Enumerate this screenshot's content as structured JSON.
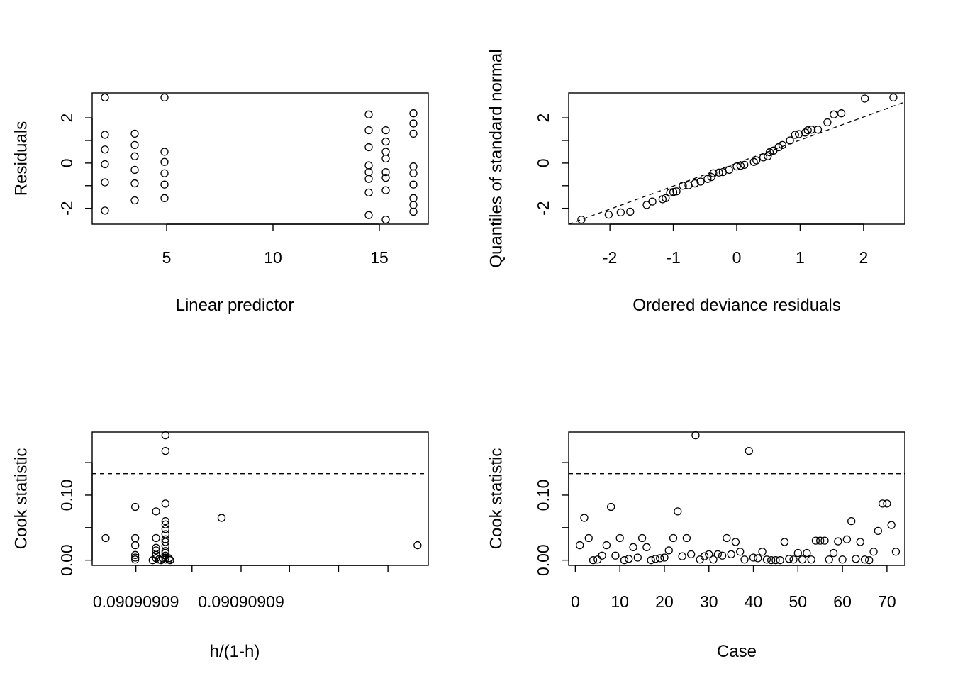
{
  "chart_data": [
    {
      "id": "residuals-vs-linear-predictor",
      "type": "scatter",
      "title": "",
      "xlabel": "Linear predictor",
      "ylabel": "Residuals",
      "xlim": [
        1.5,
        17.3
      ],
      "ylim": [
        -2.7,
        3.1
      ],
      "x_ticks": [
        {
          "v": 5,
          "label": "5"
        },
        {
          "v": 10,
          "label": "10"
        },
        {
          "v": 15,
          "label": "15"
        }
      ],
      "y_ticks": [
        {
          "v": -2,
          "label": "-2"
        },
        {
          "v": -1,
          "label": ""
        },
        {
          "v": 0,
          "label": "0"
        },
        {
          "v": 1,
          "label": ""
        },
        {
          "v": 2,
          "label": "2"
        }
      ],
      "points": [
        [
          2.1,
          2.9
        ],
        [
          2.1,
          1.25
        ],
        [
          2.1,
          0.6
        ],
        [
          2.1,
          -0.05
        ],
        [
          2.1,
          -0.85
        ],
        [
          2.1,
          -2.1
        ],
        [
          3.5,
          1.3
        ],
        [
          3.5,
          0.8
        ],
        [
          3.5,
          0.3
        ],
        [
          3.5,
          -0.3
        ],
        [
          3.5,
          -0.9
        ],
        [
          3.5,
          -1.65
        ],
        [
          4.9,
          2.9
        ],
        [
          4.9,
          0.5
        ],
        [
          4.9,
          0.05
        ],
        [
          4.9,
          -0.45
        ],
        [
          4.9,
          -0.95
        ],
        [
          4.9,
          -1.55
        ],
        [
          14.5,
          2.15
        ],
        [
          14.5,
          1.45
        ],
        [
          14.5,
          0.7
        ],
        [
          14.5,
          -0.1
        ],
        [
          14.5,
          -0.4
        ],
        [
          14.5,
          -0.7
        ],
        [
          14.5,
          -1.3
        ],
        [
          14.5,
          -2.3
        ],
        [
          15.3,
          1.45
        ],
        [
          15.3,
          0.95
        ],
        [
          15.3,
          0.5
        ],
        [
          15.3,
          0.2
        ],
        [
          15.3,
          -0.4
        ],
        [
          15.3,
          -0.65
        ],
        [
          15.3,
          -1.2
        ],
        [
          15.3,
          -2.5
        ],
        [
          16.6,
          2.2
        ],
        [
          16.6,
          1.75
        ],
        [
          16.6,
          1.3
        ],
        [
          16.6,
          -0.15
        ],
        [
          16.6,
          -0.45
        ],
        [
          16.6,
          -0.95
        ],
        [
          16.6,
          -1.55
        ],
        [
          16.6,
          -1.85
        ],
        [
          16.6,
          -2.15
        ]
      ]
    },
    {
      "id": "qq-deviance-residuals",
      "type": "scatter",
      "title": "",
      "xlabel": "Ordered deviance residuals",
      "ylabel": "Quantiles of standard normal",
      "xlim": [
        -2.65,
        2.65
      ],
      "ylim": [
        -2.7,
        3.1
      ],
      "x_ticks": [
        {
          "v": -2,
          "label": "-2"
        },
        {
          "v": -1,
          "label": "-1"
        },
        {
          "v": 0,
          "label": "0"
        },
        {
          "v": 1,
          "label": "1"
        },
        {
          "v": 2,
          "label": "2"
        }
      ],
      "y_ticks": [
        {
          "v": -2,
          "label": "-2"
        },
        {
          "v": -1,
          "label": ""
        },
        {
          "v": 0,
          "label": "0"
        },
        {
          "v": 1,
          "label": ""
        },
        {
          "v": 2,
          "label": "2"
        }
      ],
      "ref_line": [
        [
          -2.65,
          -2.7
        ],
        [
          2.65,
          2.7
        ]
      ],
      "points": [
        [
          -2.45,
          -2.5
        ],
        [
          -2.02,
          -2.28
        ],
        [
          -1.83,
          -2.18
        ],
        [
          -1.68,
          -2.15
        ],
        [
          -1.42,
          -1.85
        ],
        [
          -1.33,
          -1.7
        ],
        [
          -1.17,
          -1.6
        ],
        [
          -1.12,
          -1.55
        ],
        [
          -1.05,
          -1.3
        ],
        [
          -1.0,
          -1.28
        ],
        [
          -0.95,
          -1.25
        ],
        [
          -0.85,
          -1.0
        ],
        [
          -0.76,
          -0.98
        ],
        [
          -0.66,
          -0.9
        ],
        [
          -0.57,
          -0.82
        ],
        [
          -0.46,
          -0.7
        ],
        [
          -0.4,
          -0.62
        ],
        [
          -0.37,
          -0.45
        ],
        [
          -0.28,
          -0.42
        ],
        [
          -0.22,
          -0.4
        ],
        [
          -0.12,
          -0.3
        ],
        [
          0.0,
          -0.15
        ],
        [
          0.06,
          -0.12
        ],
        [
          0.12,
          -0.08
        ],
        [
          0.27,
          0.05
        ],
        [
          0.31,
          0.12
        ],
        [
          0.42,
          0.25
        ],
        [
          0.49,
          0.3
        ],
        [
          0.52,
          0.48
        ],
        [
          0.58,
          0.55
        ],
        [
          0.66,
          0.7
        ],
        [
          0.72,
          0.8
        ],
        [
          0.84,
          1.0
        ],
        [
          0.92,
          1.25
        ],
        [
          0.98,
          1.28
        ],
        [
          1.08,
          1.35
        ],
        [
          1.12,
          1.45
        ],
        [
          1.18,
          1.48
        ],
        [
          1.28,
          1.48
        ],
        [
          1.43,
          1.8
        ],
        [
          1.53,
          2.15
        ],
        [
          1.65,
          2.2
        ],
        [
          2.02,
          2.85
        ],
        [
          2.47,
          2.9
        ]
      ]
    },
    {
      "id": "cook-vs-leverage",
      "type": "scatter",
      "title": "",
      "xlabel": "h/(1-h)",
      "ylabel": "Cook statistic",
      "xlim": [
        0.0,
        1.0
      ],
      "ylim": [
        -0.008,
        0.197
      ],
      "x_ticks": [
        {
          "v": 0.13,
          "label": "0.09090909"
        },
        {
          "v": 0.297,
          "label": ""
        },
        {
          "v": 0.443,
          "label": "0.09090909"
        },
        {
          "v": 0.587,
          "label": ""
        },
        {
          "v": 0.733,
          "label": ""
        },
        {
          "v": 0.88,
          "label": ""
        }
      ],
      "y_ticks": [
        {
          "v": 0.0,
          "label": "0.00"
        },
        {
          "v": 0.05,
          "label": ""
        },
        {
          "v": 0.1,
          "label": "0.10"
        },
        {
          "v": 0.15,
          "label": ""
        }
      ],
      "threshold": 0.133,
      "points": [
        [
          0.04,
          0.034
        ],
        [
          0.128,
          0.082
        ],
        [
          0.128,
          0.034
        ],
        [
          0.128,
          0.023
        ],
        [
          0.128,
          0.008
        ],
        [
          0.128,
          0.004
        ],
        [
          0.128,
          0.001
        ],
        [
          0.18,
          0.0
        ],
        [
          0.19,
          0.075
        ],
        [
          0.19,
          0.034
        ],
        [
          0.19,
          0.019
        ],
        [
          0.19,
          0.015
        ],
        [
          0.19,
          0.008
        ],
        [
          0.19,
          0.003
        ],
        [
          0.198,
          0.001
        ],
        [
          0.205,
          0.0
        ],
        [
          0.21,
          0.003
        ],
        [
          0.218,
          0.192
        ],
        [
          0.218,
          0.168
        ],
        [
          0.218,
          0.087
        ],
        [
          0.218,
          0.06
        ],
        [
          0.218,
          0.055
        ],
        [
          0.218,
          0.048
        ],
        [
          0.218,
          0.04
        ],
        [
          0.218,
          0.032
        ],
        [
          0.218,
          0.028
        ],
        [
          0.218,
          0.022
        ],
        [
          0.218,
          0.014
        ],
        [
          0.218,
          0.011
        ],
        [
          0.218,
          0.007
        ],
        [
          0.218,
          0.004
        ],
        [
          0.218,
          0.001
        ],
        [
          0.228,
          0.003
        ],
        [
          0.228,
          0.001
        ],
        [
          0.232,
          0.0
        ],
        [
          0.385,
          0.065
        ],
        [
          0.968,
          0.023
        ]
      ]
    },
    {
      "id": "cook-vs-case",
      "type": "scatter",
      "title": "",
      "xlabel": "Case",
      "ylabel": "Cook statistic",
      "xlim": [
        -1.5,
        74
      ],
      "ylim": [
        -0.008,
        0.197
      ],
      "x_ticks": [
        {
          "v": 0,
          "label": "0"
        },
        {
          "v": 10,
          "label": "10"
        },
        {
          "v": 20,
          "label": "20"
        },
        {
          "v": 30,
          "label": "30"
        },
        {
          "v": 40,
          "label": "40"
        },
        {
          "v": 50,
          "label": "50"
        },
        {
          "v": 60,
          "label": "60"
        },
        {
          "v": 70,
          "label": "70"
        }
      ],
      "y_ticks": [
        {
          "v": 0.0,
          "label": "0.00"
        },
        {
          "v": 0.05,
          "label": ""
        },
        {
          "v": 0.1,
          "label": "0.10"
        },
        {
          "v": 0.15,
          "label": ""
        }
      ],
      "threshold": 0.133,
      "points": [
        [
          1,
          0.023
        ],
        [
          2,
          0.065
        ],
        [
          3,
          0.034
        ],
        [
          4,
          0.0
        ],
        [
          5,
          0.001
        ],
        [
          6,
          0.007
        ],
        [
          7,
          0.023
        ],
        [
          8,
          0.082
        ],
        [
          9,
          0.007
        ],
        [
          10,
          0.034
        ],
        [
          11,
          0.0
        ],
        [
          12,
          0.002
        ],
        [
          13,
          0.02
        ],
        [
          14,
          0.004
        ],
        [
          15,
          0.034
        ],
        [
          16,
          0.02
        ],
        [
          17,
          0.0
        ],
        [
          18,
          0.002
        ],
        [
          19,
          0.003
        ],
        [
          20,
          0.004
        ],
        [
          21,
          0.015
        ],
        [
          22,
          0.034
        ],
        [
          23,
          0.075
        ],
        [
          24,
          0.006
        ],
        [
          25,
          0.034
        ],
        [
          26,
          0.009
        ],
        [
          27,
          0.192
        ],
        [
          28,
          0.001
        ],
        [
          29,
          0.006
        ],
        [
          30,
          0.009
        ],
        [
          31,
          0.001
        ],
        [
          32,
          0.009
        ],
        [
          33,
          0.007
        ],
        [
          34,
          0.034
        ],
        [
          35,
          0.009
        ],
        [
          36,
          0.028
        ],
        [
          37,
          0.013
        ],
        [
          38,
          0.001
        ],
        [
          39,
          0.168
        ],
        [
          40,
          0.004
        ],
        [
          41,
          0.003
        ],
        [
          42,
          0.013
        ],
        [
          43,
          0.001
        ],
        [
          44,
          0.0
        ],
        [
          45,
          0.0
        ],
        [
          46,
          0.0
        ],
        [
          47,
          0.028
        ],
        [
          48,
          0.002
        ],
        [
          49,
          0.001
        ],
        [
          50,
          0.011
        ],
        [
          51,
          0.001
        ],
        [
          52,
          0.011
        ],
        [
          53,
          0.001
        ],
        [
          54,
          0.03
        ],
        [
          55,
          0.03
        ],
        [
          56,
          0.03
        ],
        [
          57,
          0.001
        ],
        [
          58,
          0.011
        ],
        [
          59,
          0.029
        ],
        [
          60,
          0.001
        ],
        [
          61,
          0.032
        ],
        [
          62,
          0.06
        ],
        [
          63,
          0.002
        ],
        [
          64,
          0.028
        ],
        [
          65,
          0.001
        ],
        [
          66,
          0.0
        ],
        [
          67,
          0.013
        ],
        [
          68,
          0.045
        ],
        [
          69,
          0.087
        ],
        [
          70,
          0.087
        ],
        [
          71,
          0.054
        ],
        [
          72,
          0.013
        ]
      ]
    }
  ]
}
